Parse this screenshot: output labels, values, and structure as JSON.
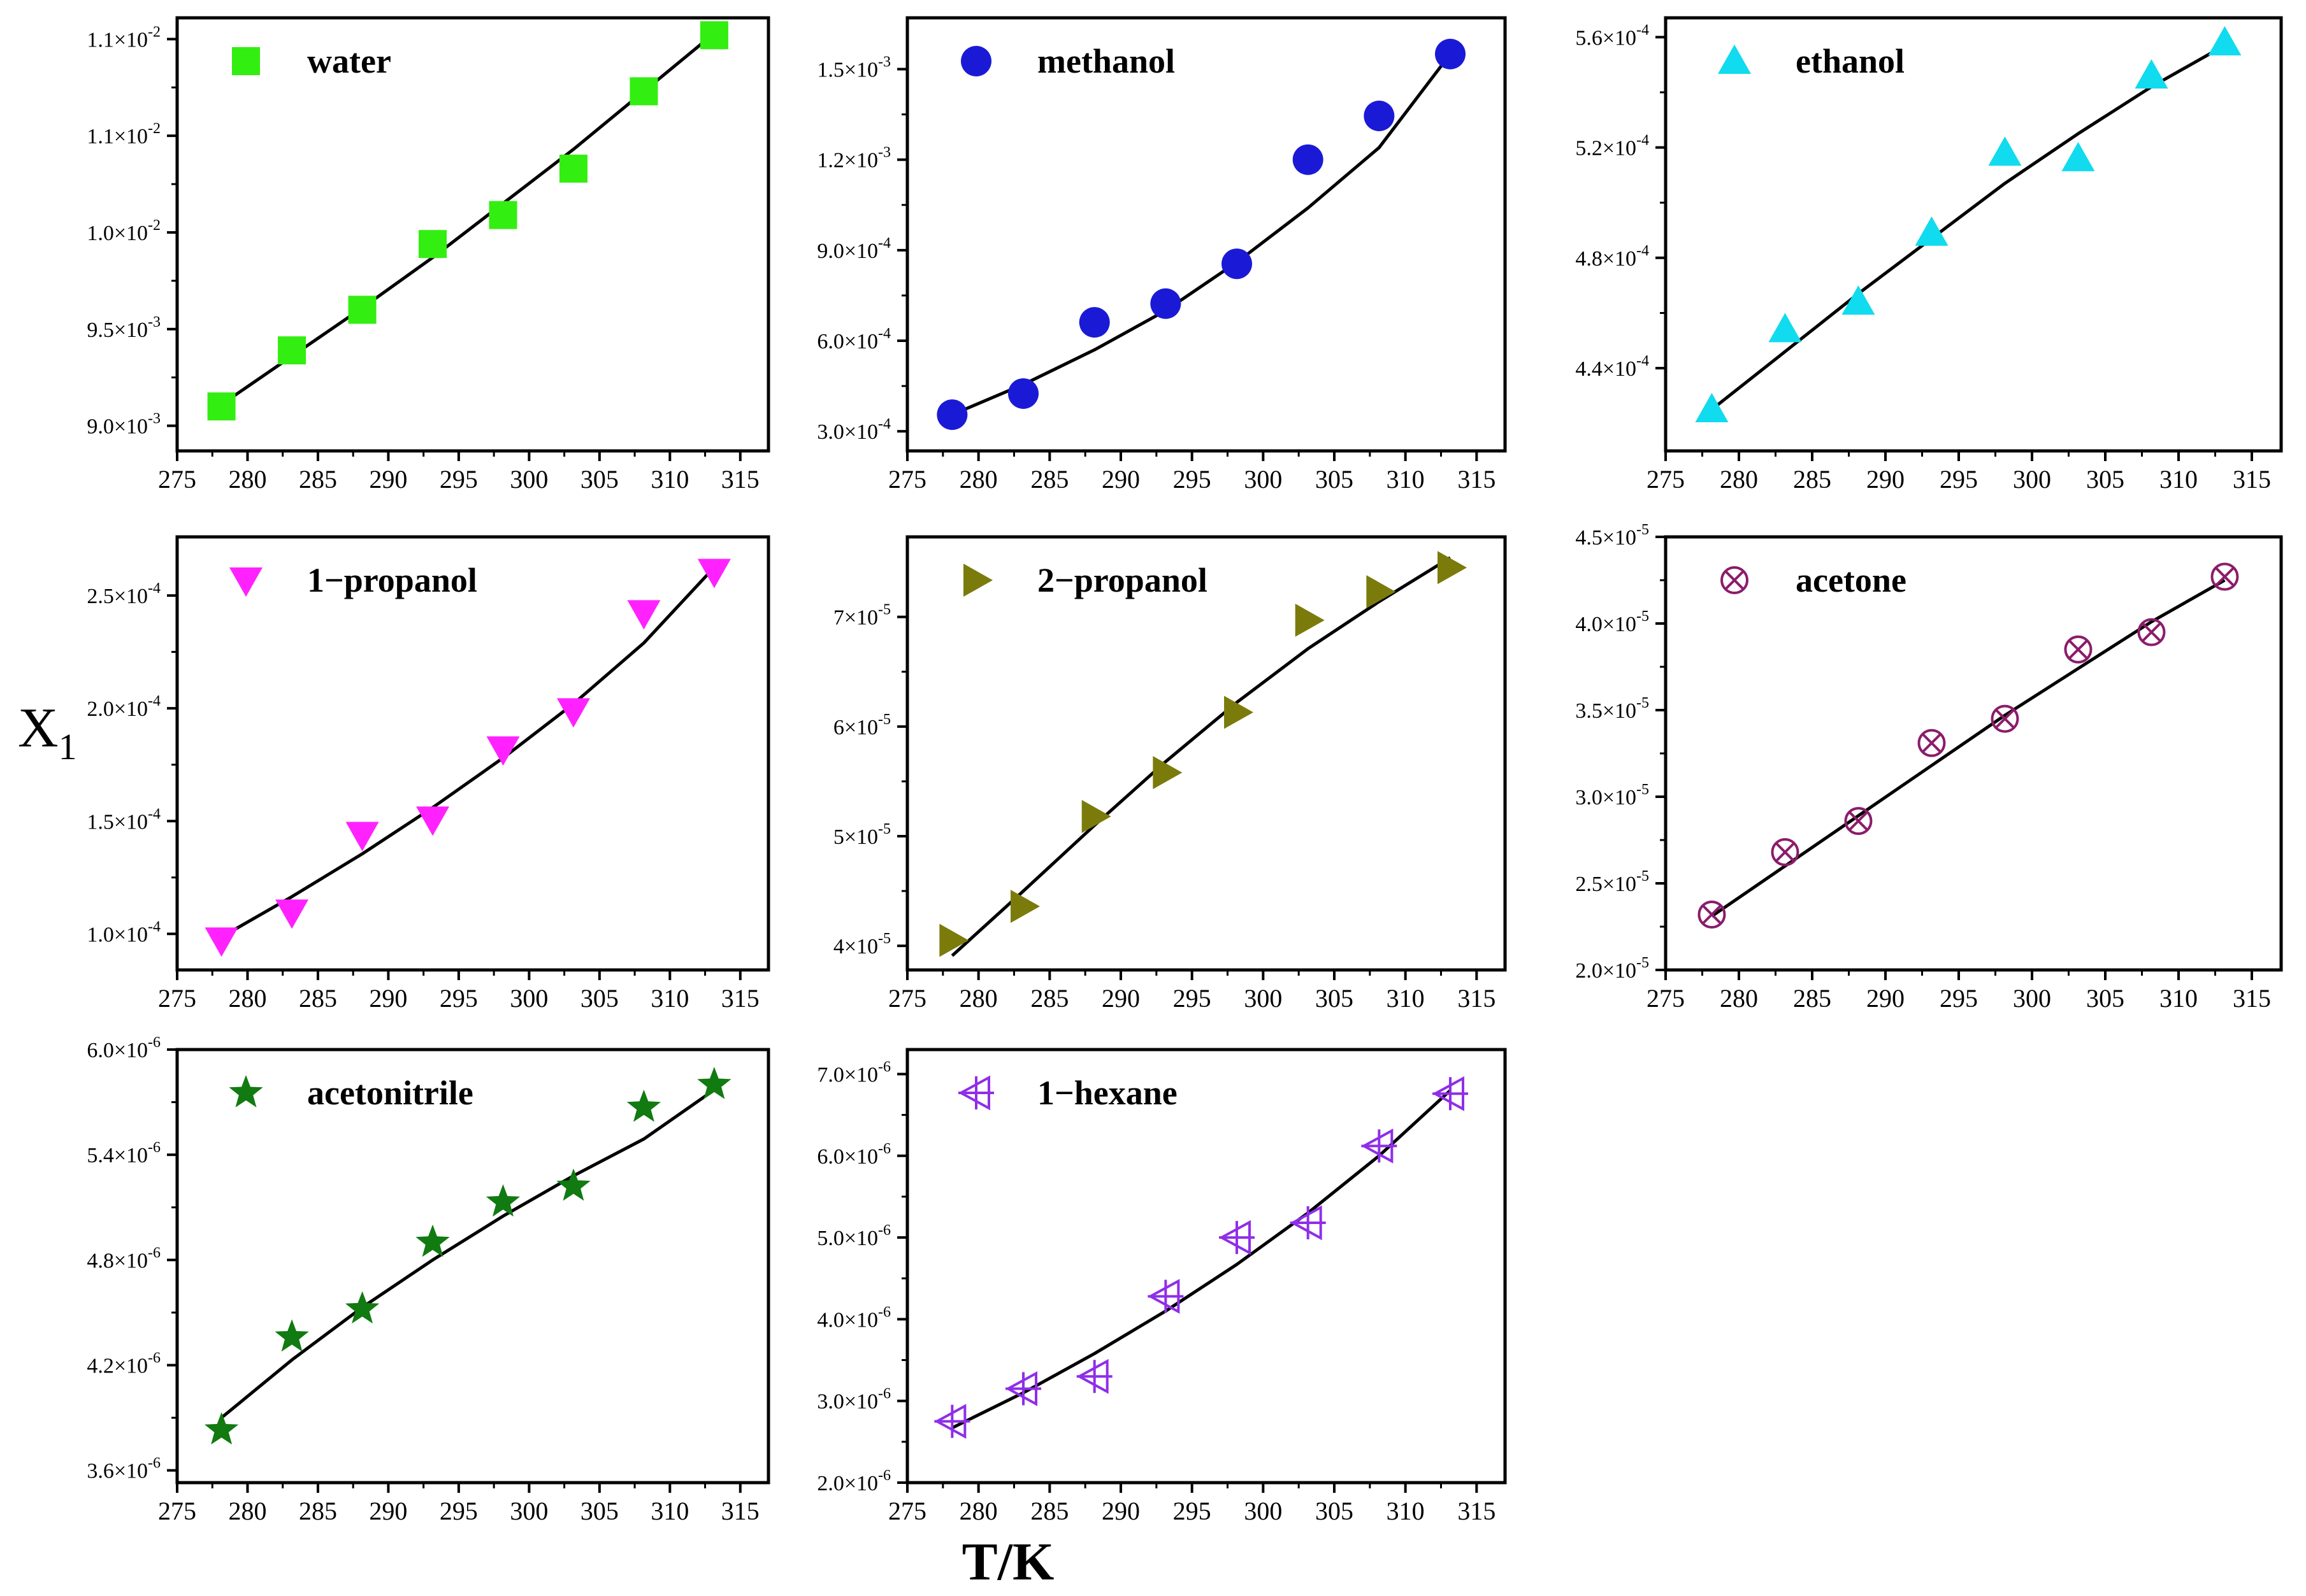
{
  "figure": {
    "ylabel": "X1",
    "xlabel": "T/K"
  },
  "chart_data": [
    {
      "type": "scatter",
      "series": [
        {
          "name": "water",
          "x": [
            278.15,
            283.15,
            288.15,
            293.15,
            298.15,
            303.15,
            308.15,
            313.15
          ],
          "y": [
            0.0091,
            0.00939,
            0.0096,
            0.00994,
            0.01009,
            0.01033,
            0.01073,
            0.01102
          ],
          "fit_y": [
            0.00911,
            0.00936,
            0.00961,
            0.00987,
            0.01015,
            0.01043,
            0.01073,
            0.01103
          ]
        }
      ],
      "marker": "square",
      "color": "#33ee11",
      "xlim": [
        275,
        317
      ],
      "xticks": [
        "275",
        "280",
        "285",
        "290",
        "295",
        "300",
        "305",
        "310",
        "315"
      ],
      "ylim": [
        0.00887,
        0.01111
      ],
      "yticks": [
        {
          "value": 0.009,
          "label": "9.0×10-3"
        },
        {
          "value": 0.0095,
          "label": "9.5×10-3"
        },
        {
          "value": 0.01,
          "label": "1.0×10-2"
        },
        {
          "value": 0.0105,
          "label": "1.1×10-2"
        },
        {
          "value": 0.011,
          "label": "1.1×10-2"
        }
      ]
    },
    {
      "type": "scatter",
      "series": [
        {
          "name": "methanol",
          "x": [
            278.15,
            283.15,
            288.15,
            293.15,
            298.15,
            303.15,
            308.15,
            313.15
          ],
          "y": [
            0.000355,
            0.000425,
            0.000661,
            0.000723,
            0.000855,
            0.0012,
            0.001345,
            0.00155
          ],
          "fit_y": [
            0.000355,
            0.000455,
            0.00057,
            0.0007,
            0.00086,
            0.00104,
            0.00124,
            0.00155
          ]
        }
      ],
      "marker": "circle",
      "color": "#1a1ad6",
      "xlim": [
        275,
        317
      ],
      "xticks": [
        "275",
        "280",
        "285",
        "290",
        "295",
        "300",
        "305",
        "310",
        "315"
      ],
      "ylim": [
        0.000235,
        0.00167
      ],
      "yticks": [
        {
          "value": 0.0003,
          "label": "3.0×10-4"
        },
        {
          "value": 0.0006,
          "label": "6.0×10-4"
        },
        {
          "value": 0.0009,
          "label": "9.0×10-4"
        },
        {
          "value": 0.0012,
          "label": "1.2×10-3"
        },
        {
          "value": 0.0015,
          "label": "1.5×10-3"
        }
      ]
    },
    {
      "type": "scatter",
      "series": [
        {
          "name": "ethanol",
          "x": [
            278.15,
            283.15,
            288.15,
            293.15,
            298.15,
            303.15,
            308.15,
            313.15
          ],
          "y": [
            0.000425,
            0.000454,
            0.000464,
            0.000489,
            0.000518,
            0.000516,
            0.000546,
            0.000558
          ],
          "fit_y": [
            0.000425,
            0.000446,
            0.000467,
            0.000487,
            0.000507,
            0.000525,
            0.000542,
            0.000557
          ]
        }
      ],
      "marker": "triangle-up",
      "color": "#11dbee",
      "xlim": [
        275,
        317
      ],
      "xticks": [
        "275",
        "280",
        "285",
        "290",
        "295",
        "300",
        "305",
        "310",
        "315"
      ],
      "ylim": [
        0.00041,
        0.000567
      ],
      "yticks": [
        {
          "value": 0.00044,
          "label": "4.4×10-4"
        },
        {
          "value": 0.00048,
          "label": "4.8×10-4"
        },
        {
          "value": 0.00052,
          "label": "5.2×10-4"
        },
        {
          "value": 0.00056,
          "label": "5.6×10-4"
        }
      ]
    },
    {
      "type": "scatter",
      "series": [
        {
          "name": "1−propanol",
          "x": [
            278.15,
            283.15,
            288.15,
            293.15,
            298.15,
            303.15,
            308.15,
            313.15
          ],
          "y": [
            9.72e-05,
            0.0001096,
            0.000144,
            0.0001508,
            0.0001819,
            0.0001988,
            0.0002423,
            0.0002606
          ],
          "fit_y": [
            9.86e-05,
            0.0001165,
            0.0001355,
            0.000156,
            0.000178,
            0.000202,
            0.000229,
            0.0002625
          ]
        }
      ],
      "marker": "triangle-down",
      "color": "#ff22ff",
      "xlim": [
        275,
        317
      ],
      "xticks": [
        "275",
        "280",
        "285",
        "290",
        "295",
        "300",
        "305",
        "310",
        "315"
      ],
      "ylim": [
        8.4e-05,
        0.000276
      ],
      "yticks": [
        {
          "value": 0.0001,
          "label": "1.0×10-4"
        },
        {
          "value": 0.00015,
          "label": "1.5×10-4"
        },
        {
          "value": 0.0002,
          "label": "2.0×10-4"
        },
        {
          "value": 0.00025,
          "label": "2.5×10-4"
        }
      ]
    },
    {
      "type": "scatter",
      "series": [
        {
          "name": "2−propanol",
          "x": [
            278.15,
            283.15,
            288.15,
            293.15,
            298.15,
            303.15,
            308.15,
            313.15
          ],
          "y": [
            4.05e-05,
            4.36e-05,
            5.18e-05,
            5.58e-05,
            6.13e-05,
            6.97e-05,
            7.23e-05,
            7.45e-05
          ],
          "fit_y": [
            3.91e-05,
            4.5e-05,
            5.1e-05,
            5.68e-05,
            6.22e-05,
            6.71e-05,
            7.14e-05,
            7.54e-05
          ]
        }
      ],
      "marker": "triangle-right",
      "color": "#7b7b0c",
      "xlim": [
        275,
        317
      ],
      "xticks": [
        "275",
        "280",
        "285",
        "290",
        "295",
        "300",
        "305",
        "310",
        "315"
      ],
      "ylim": [
        3.78e-05,
        7.73e-05
      ],
      "yticks": [
        {
          "value": 4e-05,
          "label": "4×10-5"
        },
        {
          "value": 5e-05,
          "label": "5×10-5"
        },
        {
          "value": 6e-05,
          "label": "6×10-5"
        },
        {
          "value": 7e-05,
          "label": "7×10-5"
        }
      ]
    },
    {
      "type": "scatter",
      "series": [
        {
          "name": "acetone",
          "x": [
            278.15,
            283.15,
            288.15,
            293.15,
            298.15,
            303.15,
            308.15,
            313.15
          ],
          "y": [
            2.32e-05,
            2.68e-05,
            2.86e-05,
            3.31e-05,
            3.45e-05,
            3.85e-05,
            3.95e-05,
            4.27e-05
          ],
          "fit_y": [
            2.31e-05,
            2.6e-05,
            2.89e-05,
            3.18e-05,
            3.47e-05,
            3.74e-05,
            4.01e-05,
            4.25e-05
          ]
        }
      ],
      "marker": "circle-x",
      "color": "#8b1c6a",
      "xlim": [
        275,
        317
      ],
      "xticks": [
        "275",
        "280",
        "285",
        "290",
        "295",
        "300",
        "305",
        "310",
        "315"
      ],
      "ylim": [
        2e-05,
        4.5e-05
      ],
      "yticks": [
        {
          "value": 2e-05,
          "label": "2.0×10-5"
        },
        {
          "value": 2.5e-05,
          "label": "2.5×10-5"
        },
        {
          "value": 3e-05,
          "label": "3.0×10-5"
        },
        {
          "value": 3.5e-05,
          "label": "3.5×10-5"
        },
        {
          "value": 4e-05,
          "label": "4.0×10-5"
        },
        {
          "value": 4.5e-05,
          "label": "4.5×10-5"
        }
      ]
    },
    {
      "type": "scatter",
      "series": [
        {
          "name": "acetonitrile",
          "x": [
            278.15,
            283.15,
            288.15,
            293.15,
            298.15,
            303.15,
            308.15,
            313.15
          ],
          "y": [
            3.83e-06,
            4.36e-06,
            4.52e-06,
            4.9e-06,
            5.13e-06,
            5.22e-06,
            5.67e-06,
            5.8e-06
          ],
          "fit_y": [
            3.9e-06,
            4.23e-06,
            4.53e-06,
            4.8e-06,
            5.05e-06,
            5.28e-06,
            5.49e-06,
            5.77e-06
          ]
        }
      ],
      "marker": "star",
      "color": "#117a11",
      "xlim": [
        275,
        317
      ],
      "xticks": [
        "275",
        "280",
        "285",
        "290",
        "295",
        "300",
        "305",
        "310",
        "315"
      ],
      "ylim": [
        3.53e-06,
        6e-06
      ],
      "yticks": [
        {
          "value": 3.6e-06,
          "label": "3.6×10-6"
        },
        {
          "value": 4.2e-06,
          "label": "4.2×10-6"
        },
        {
          "value": 4.8e-06,
          "label": "4.8×10-6"
        },
        {
          "value": 5.4e-06,
          "label": "5.4×10-6"
        },
        {
          "value": 6e-06,
          "label": "6.0×10-6"
        }
      ]
    },
    {
      "type": "scatter",
      "series": [
        {
          "name": "1−hexane",
          "x": [
            278.15,
            283.15,
            288.15,
            293.15,
            298.15,
            303.15,
            308.15,
            313.15
          ],
          "y": [
            2.75e-06,
            3.15e-06,
            3.3e-06,
            4.28e-06,
            5e-06,
            5.18e-06,
            6.12e-06,
            6.76e-06
          ],
          "fit_y": [
            2.67e-06,
            3.1e-06,
            3.58e-06,
            4.1e-06,
            4.67e-06,
            5.3e-06,
            6e-06,
            6.8e-06
          ]
        }
      ],
      "marker": "triangle-left-cross",
      "color": "#8f2ee8",
      "xlim": [
        275,
        317
      ],
      "xticks": [
        "275",
        "280",
        "285",
        "290",
        "295",
        "300",
        "305",
        "310",
        "315"
      ],
      "ylim": [
        2e-06,
        7.3e-06
      ],
      "yticks": [
        {
          "value": 2e-06,
          "label": "2.0×10-6"
        },
        {
          "value": 3e-06,
          "label": "3.0×10-6"
        },
        {
          "value": 4e-06,
          "label": "4.0×10-6"
        },
        {
          "value": 5e-06,
          "label": "5.0×10-6"
        },
        {
          "value": 6e-06,
          "label": "6.0×10-6"
        },
        {
          "value": 7e-06,
          "label": "7.0×10-6"
        }
      ]
    }
  ]
}
